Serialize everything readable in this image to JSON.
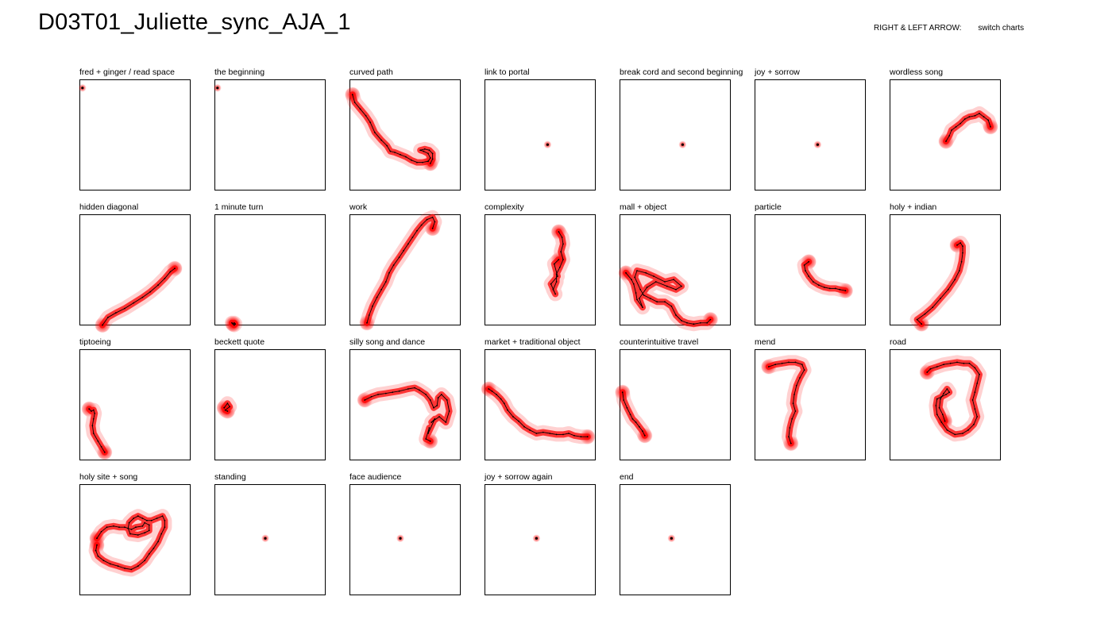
{
  "page": {
    "title": "D03T01_Juliette_sync_AJA_1",
    "hint_keys": "RIGHT & LEFT ARROW:",
    "hint_action": "switch charts"
  },
  "colors": {
    "glow": "#ff0000",
    "path": "#000000",
    "frame": "#000000"
  },
  "chart_data": {
    "type": "scatter",
    "xlim": [
      0,
      100
    ],
    "ylim": [
      0,
      100
    ],
    "grid": false,
    "panels": [
      {
        "label": "fred + ginger / read space",
        "points": [
          [
            2,
            93
          ]
        ]
      },
      {
        "label": "the beginning",
        "points": [
          [
            2,
            93
          ]
        ]
      },
      {
        "label": "curved path",
        "points": [
          [
            2,
            87
          ],
          [
            4,
            80
          ],
          [
            9,
            74
          ],
          [
            14,
            68
          ],
          [
            18,
            62
          ],
          [
            22,
            53
          ],
          [
            28,
            46
          ],
          [
            33,
            41
          ],
          [
            36,
            36
          ],
          [
            40,
            35
          ],
          [
            45,
            33
          ],
          [
            50,
            31
          ],
          [
            55,
            28
          ],
          [
            60,
            26
          ],
          [
            65,
            26
          ],
          [
            70,
            27
          ],
          [
            72,
            30
          ],
          [
            70,
            34
          ],
          [
            66,
            36
          ],
          [
            63,
            37
          ],
          [
            67,
            38
          ],
          [
            71,
            37
          ],
          [
            74,
            34
          ],
          [
            74,
            29
          ],
          [
            72,
            25
          ]
        ]
      },
      {
        "label": "link to portal",
        "points": [
          [
            56,
            42
          ]
        ]
      },
      {
        "label": "break cord and second beginning",
        "points": [
          [
            56,
            42
          ]
        ]
      },
      {
        "label": "joy + sorrow",
        "points": [
          [
            56,
            42
          ]
        ]
      },
      {
        "label": "wordless song",
        "points": [
          [
            50,
            45
          ],
          [
            53,
            50
          ],
          [
            55,
            55
          ],
          [
            59,
            58
          ],
          [
            63,
            61
          ],
          [
            67,
            65
          ],
          [
            71,
            67
          ],
          [
            76,
            68
          ],
          [
            80,
            70
          ],
          [
            84,
            67
          ],
          [
            88,
            64
          ],
          [
            90,
            58
          ]
        ]
      },
      {
        "label": "hidden diagonal",
        "points": [
          [
            20,
            1
          ],
          [
            25,
            8
          ],
          [
            32,
            12
          ],
          [
            40,
            16
          ],
          [
            48,
            21
          ],
          [
            56,
            26
          ],
          [
            63,
            31
          ],
          [
            70,
            37
          ],
          [
            76,
            43
          ],
          [
            81,
            49
          ],
          [
            85,
            52
          ]
        ]
      },
      {
        "label": "1 minute turn",
        "points": [
          [
            16,
            2
          ],
          [
            17,
            3
          ],
          [
            18,
            2
          ],
          [
            17,
            1
          ],
          [
            15,
            3
          ],
          [
            16,
            2
          ]
        ]
      },
      {
        "label": "work",
        "points": [
          [
            15,
            3
          ],
          [
            17,
            10
          ],
          [
            20,
            18
          ],
          [
            24,
            26
          ],
          [
            28,
            33
          ],
          [
            32,
            40
          ],
          [
            35,
            48
          ],
          [
            39,
            55
          ],
          [
            44,
            62
          ],
          [
            48,
            68
          ],
          [
            52,
            74
          ],
          [
            56,
            80
          ],
          [
            60,
            86
          ],
          [
            64,
            91
          ],
          [
            69,
            96
          ],
          [
            74,
            98
          ],
          [
            76,
            94
          ],
          [
            74,
            88
          ]
        ]
      },
      {
        "label": "complexity",
        "points": [
          [
            66,
            85
          ],
          [
            69,
            80
          ],
          [
            70,
            74
          ],
          [
            68,
            67
          ],
          [
            70,
            60
          ],
          [
            67,
            53
          ],
          [
            64,
            47
          ],
          [
            64,
            40
          ],
          [
            61,
            33
          ],
          [
            63,
            29
          ],
          [
            59,
            38
          ],
          [
            65,
            45
          ],
          [
            62,
            56
          ],
          [
            66,
            60
          ]
        ]
      },
      {
        "label": "mall + object",
        "points": [
          [
            5,
            48
          ],
          [
            10,
            42
          ],
          [
            12,
            38
          ],
          [
            14,
            30
          ],
          [
            15,
            24
          ],
          [
            20,
            17
          ],
          [
            17,
            25
          ],
          [
            24,
            35
          ],
          [
            32,
            40
          ],
          [
            42,
            36
          ],
          [
            50,
            33
          ],
          [
            55,
            36
          ],
          [
            48,
            42
          ],
          [
            40,
            40
          ],
          [
            30,
            45
          ],
          [
            23,
            48
          ],
          [
            15,
            50
          ],
          [
            13,
            44
          ],
          [
            18,
            33
          ],
          [
            21,
            28
          ],
          [
            27,
            25
          ],
          [
            33,
            22
          ],
          [
            40,
            22
          ],
          [
            46,
            18
          ],
          [
            50,
            10
          ],
          [
            55,
            5
          ],
          [
            60,
            3
          ],
          [
            66,
            2
          ],
          [
            72,
            3
          ],
          [
            78,
            3
          ],
          [
            81,
            6
          ]
        ]
      },
      {
        "label": "particle",
        "points": [
          [
            48,
            58
          ],
          [
            44,
            55
          ],
          [
            45,
            50
          ],
          [
            48,
            45
          ],
          [
            52,
            40
          ],
          [
            57,
            37
          ],
          [
            62,
            35
          ],
          [
            67,
            34
          ],
          [
            72,
            34
          ],
          [
            76,
            33
          ],
          [
            81,
            32
          ]
        ]
      },
      {
        "label": "holy + indian",
        "points": [
          [
            28,
            2
          ],
          [
            24,
            6
          ],
          [
            31,
            11
          ],
          [
            38,
            17
          ],
          [
            45,
            25
          ],
          [
            52,
            33
          ],
          [
            58,
            42
          ],
          [
            62,
            50
          ],
          [
            64,
            58
          ],
          [
            65,
            66
          ],
          [
            65,
            72
          ],
          [
            63,
            75
          ],
          [
            60,
            73
          ]
        ]
      },
      {
        "label": "tiptoeing",
        "points": [
          [
            8,
            47
          ],
          [
            10,
            45
          ],
          [
            12,
            46
          ],
          [
            13,
            43
          ],
          [
            12,
            38
          ],
          [
            11,
            32
          ],
          [
            12,
            25
          ],
          [
            16,
            18
          ],
          [
            19,
            13
          ],
          [
            22,
            8
          ]
        ]
      },
      {
        "label": "beckett quote",
        "points": [
          [
            8,
            48
          ],
          [
            11,
            52
          ],
          [
            13,
            49
          ],
          [
            9,
            46
          ],
          [
            11,
            45
          ]
        ]
      },
      {
        "label": "silly song and dance",
        "points": [
          [
            13,
            55
          ],
          [
            19,
            58
          ],
          [
            25,
            60
          ],
          [
            32,
            61
          ],
          [
            38,
            62
          ],
          [
            44,
            63
          ],
          [
            52,
            65
          ],
          [
            58,
            66
          ],
          [
            62,
            64
          ],
          [
            68,
            60
          ],
          [
            72,
            55
          ],
          [
            75,
            48
          ],
          [
            78,
            50
          ],
          [
            79,
            57
          ],
          [
            82,
            60
          ],
          [
            87,
            55
          ],
          [
            89,
            45
          ],
          [
            86,
            35
          ],
          [
            80,
            40
          ],
          [
            73,
            35
          ],
          [
            76,
            38
          ],
          [
            70,
            25
          ],
          [
            71,
            30
          ],
          [
            68,
            20
          ],
          [
            72,
            18
          ]
        ]
      },
      {
        "label": "market + traditional object",
        "points": [
          [
            3,
            65
          ],
          [
            6,
            63
          ],
          [
            10,
            60
          ],
          [
            14,
            56
          ],
          [
            17,
            52
          ],
          [
            20,
            46
          ],
          [
            25,
            40
          ],
          [
            30,
            36
          ],
          [
            35,
            31
          ],
          [
            40,
            28
          ],
          [
            46,
            25
          ],
          [
            52,
            26
          ],
          [
            58,
            25
          ],
          [
            64,
            24
          ],
          [
            70,
            24
          ],
          [
            75,
            25
          ],
          [
            80,
            23
          ],
          [
            86,
            22
          ],
          [
            92,
            22
          ]
        ]
      },
      {
        "label": "counterintuitive travel",
        "points": [
          [
            2,
            62
          ],
          [
            3,
            55
          ],
          [
            6,
            48
          ],
          [
            9,
            42
          ],
          [
            11,
            38
          ],
          [
            14,
            35
          ],
          [
            17,
            31
          ],
          [
            20,
            27
          ],
          [
            22,
            23
          ]
        ]
      },
      {
        "label": "mend",
        "points": [
          [
            12,
            85
          ],
          [
            18,
            87
          ],
          [
            24,
            88
          ],
          [
            30,
            89
          ],
          [
            36,
            89
          ],
          [
            42,
            87
          ],
          [
            44,
            82
          ],
          [
            40,
            75
          ],
          [
            37,
            68
          ],
          [
            35,
            60
          ],
          [
            34,
            52
          ],
          [
            36,
            45
          ],
          [
            33,
            38
          ],
          [
            31,
            30
          ],
          [
            30,
            22
          ],
          [
            32,
            16
          ]
        ]
      },
      {
        "label": "road",
        "points": [
          [
            33,
            80
          ],
          [
            36,
            83
          ],
          [
            42,
            85
          ],
          [
            48,
            87
          ],
          [
            54,
            88
          ],
          [
            60,
            89
          ],
          [
            66,
            88
          ],
          [
            71,
            88
          ],
          [
            76,
            84
          ],
          [
            80,
            78
          ],
          [
            78,
            70
          ],
          [
            76,
            62
          ],
          [
            74,
            55
          ],
          [
            76,
            47
          ],
          [
            78,
            40
          ],
          [
            75,
            33
          ],
          [
            70,
            28
          ],
          [
            65,
            25
          ],
          [
            58,
            24
          ],
          [
            51,
            28
          ],
          [
            46,
            35
          ],
          [
            42,
            42
          ],
          [
            41,
            50
          ],
          [
            42,
            56
          ],
          [
            46,
            58
          ],
          [
            50,
            60
          ],
          [
            53,
            62
          ],
          [
            51,
            65
          ],
          [
            48,
            61
          ],
          [
            45,
            56
          ],
          [
            44,
            48
          ],
          [
            47,
            42
          ],
          [
            49,
            36
          ]
        ]
      },
      {
        "label": "holy site + song",
        "points": [
          [
            15,
            46
          ],
          [
            14,
            41
          ],
          [
            16,
            36
          ],
          [
            21,
            32
          ],
          [
            27,
            29
          ],
          [
            34,
            27
          ],
          [
            40,
            25
          ],
          [
            46,
            24
          ],
          [
            52,
            27
          ],
          [
            58,
            32
          ],
          [
            62,
            38
          ],
          [
            66,
            43
          ],
          [
            70,
            49
          ],
          [
            73,
            56
          ],
          [
            76,
            62
          ],
          [
            76,
            68
          ],
          [
            74,
            72
          ],
          [
            69,
            70
          ],
          [
            64,
            68
          ],
          [
            60,
            68
          ],
          [
            56,
            70
          ],
          [
            52,
            72
          ],
          [
            48,
            70
          ],
          [
            44,
            66
          ],
          [
            43,
            61
          ],
          [
            45,
            56
          ],
          [
            52,
            55
          ],
          [
            58,
            57
          ],
          [
            62,
            59
          ],
          [
            62,
            64
          ],
          [
            58,
            66
          ],
          [
            56,
            63
          ],
          [
            50,
            62
          ],
          [
            46,
            60
          ],
          [
            40,
            62
          ],
          [
            35,
            62
          ],
          [
            30,
            63
          ],
          [
            24,
            62
          ],
          [
            19,
            58
          ],
          [
            15,
            52
          ]
        ]
      },
      {
        "label": "standing",
        "points": [
          [
            45,
            52
          ]
        ]
      },
      {
        "label": "face audience",
        "points": [
          [
            45,
            52
          ]
        ]
      },
      {
        "label": "joy + sorrow again",
        "points": [
          [
            46,
            52
          ]
        ]
      },
      {
        "label": "end",
        "points": [
          [
            46,
            52
          ]
        ]
      }
    ]
  }
}
